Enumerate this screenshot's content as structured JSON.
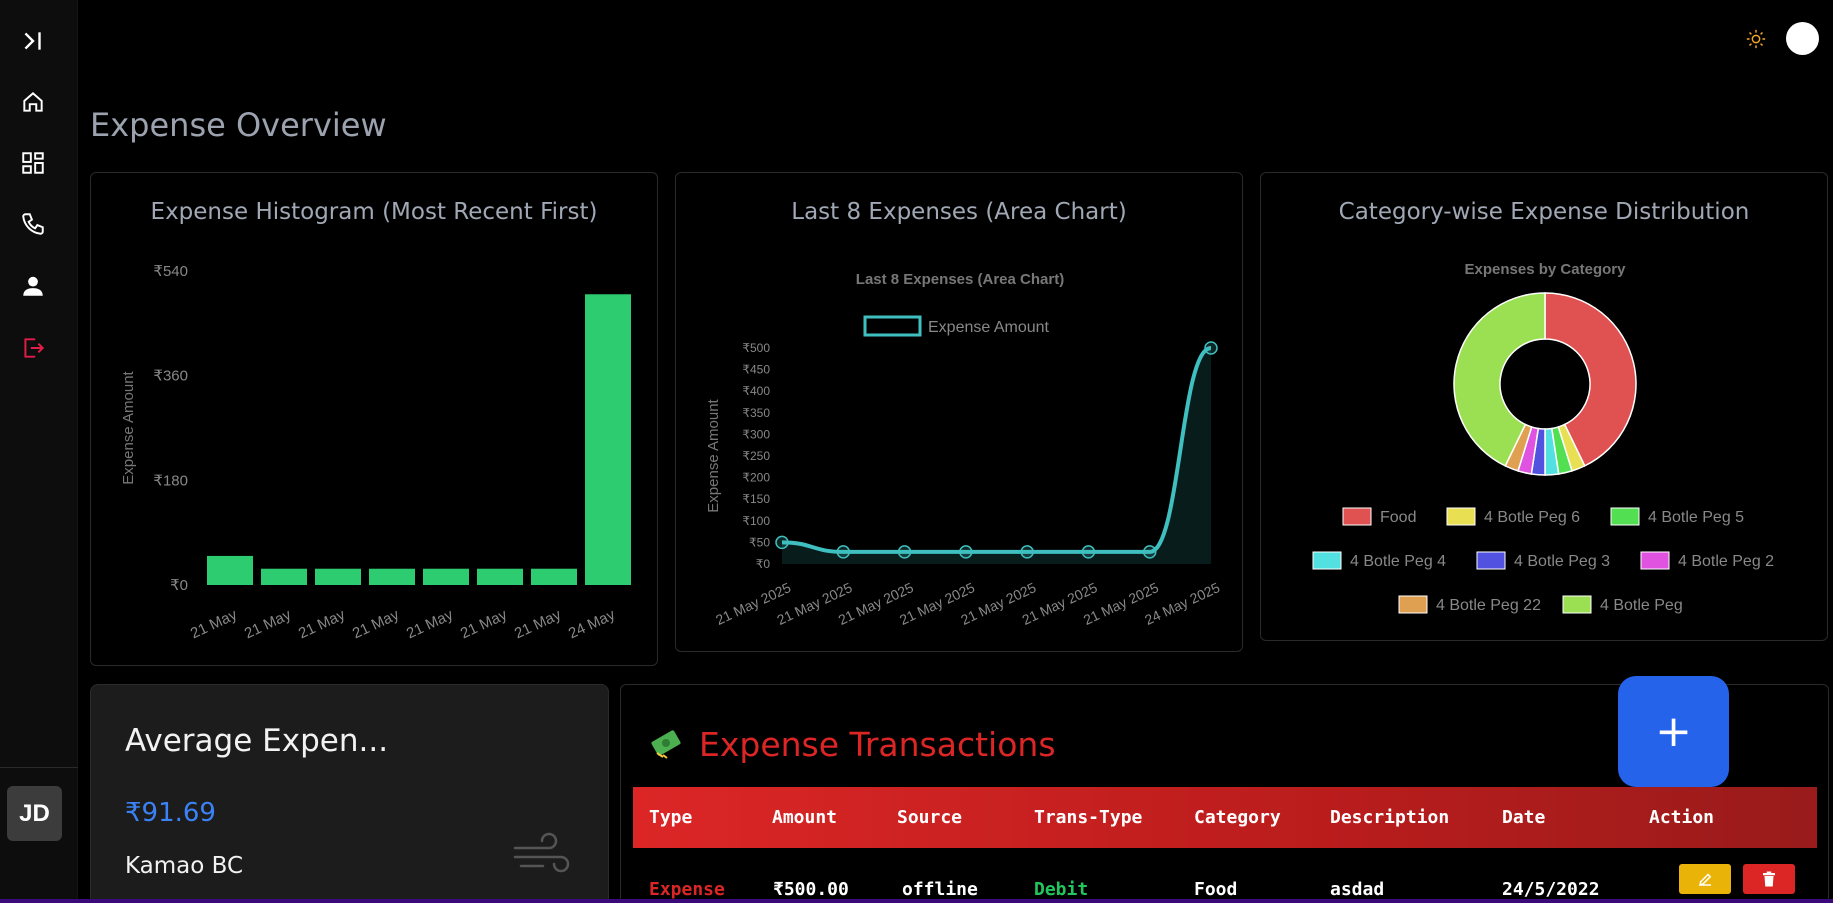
{
  "sidebar": {
    "items": [
      {
        "icon": "collapse-icon"
      },
      {
        "icon": "home-icon"
      },
      {
        "icon": "dashboard-icon"
      },
      {
        "icon": "phone-icon"
      },
      {
        "icon": "user-icon"
      },
      {
        "icon": "logout-icon",
        "color": "#e11d48"
      }
    ],
    "avatar": "JD"
  },
  "header": {
    "theme_icon": "sun-icon"
  },
  "page_title": "Expense Overview",
  "cards": {
    "histogram_title": "Expense Histogram (Most Recent First)",
    "area_title": "Last 8 Expenses (Area Chart)",
    "pie_title": "Category-wise Expense Distribution"
  },
  "chart_data": [
    {
      "type": "bar",
      "title": "",
      "ylabel": "Expense Amount",
      "categories": [
        "21 May",
        "21 May",
        "21 May",
        "21 May",
        "21 May",
        "21 May",
        "21 May",
        "24 May"
      ],
      "values": [
        50,
        28,
        28,
        28,
        28,
        28,
        28,
        500
      ],
      "ylim": [
        0,
        540
      ],
      "yticks": [
        "₹0",
        "₹180",
        "₹360",
        "₹540"
      ],
      "color": "#2ecc71"
    },
    {
      "type": "area",
      "title": "Last 8 Expenses (Area Chart)",
      "ylabel": "Expense Amount",
      "legend": "Expense Amount",
      "categories": [
        "21 May 2025",
        "21 May 2025",
        "21 May 2025",
        "21 May 2025",
        "21 May 2025",
        "21 May 2025",
        "21 May 2025",
        "24 May 2025"
      ],
      "values": [
        50,
        28,
        28,
        28,
        28,
        28,
        28,
        500
      ],
      "ylim": [
        0,
        500
      ],
      "yticks": [
        "₹0",
        "₹50",
        "₹100",
        "₹150",
        "₹200",
        "₹250",
        "₹300",
        "₹350",
        "₹400",
        "₹450",
        "₹500"
      ],
      "color": "#3fbfbf"
    },
    {
      "type": "pie",
      "title": "Expenses by Category",
      "categories": [
        "Food",
        "4 Botle Peg 6",
        "4 Botle Peg 5",
        "4 Botle Peg 4",
        "4 Botle Peg 3",
        "4 Botle Peg 2",
        "4 Botle Peg 22",
        "4 Botle Peg"
      ],
      "values": [
        500,
        28,
        28,
        28,
        28,
        28,
        28,
        500
      ],
      "colors": [
        "#e05252",
        "#e8e052",
        "#52e052",
        "#52e0e0",
        "#5252e0",
        "#e052e0",
        "#e0a052",
        "#9be052"
      ]
    }
  ],
  "average": {
    "title": "Average Expen...",
    "value": "₹91.69",
    "name": "Kamao BC",
    "icon": "wind-icon"
  },
  "transactions": {
    "title": "Expense Transactions",
    "icon": "money-icon",
    "columns": [
      "Type",
      "Amount",
      "Source",
      "Trans-Type",
      "Category",
      "Description",
      "Date",
      "Action"
    ],
    "rows": [
      {
        "type": "Expense",
        "amount": "₹500.00",
        "source": "offline",
        "trans_type": "Debit",
        "category": "Food",
        "description": "asdad",
        "date": "24/5/2022"
      }
    ]
  },
  "fab_label": "+"
}
